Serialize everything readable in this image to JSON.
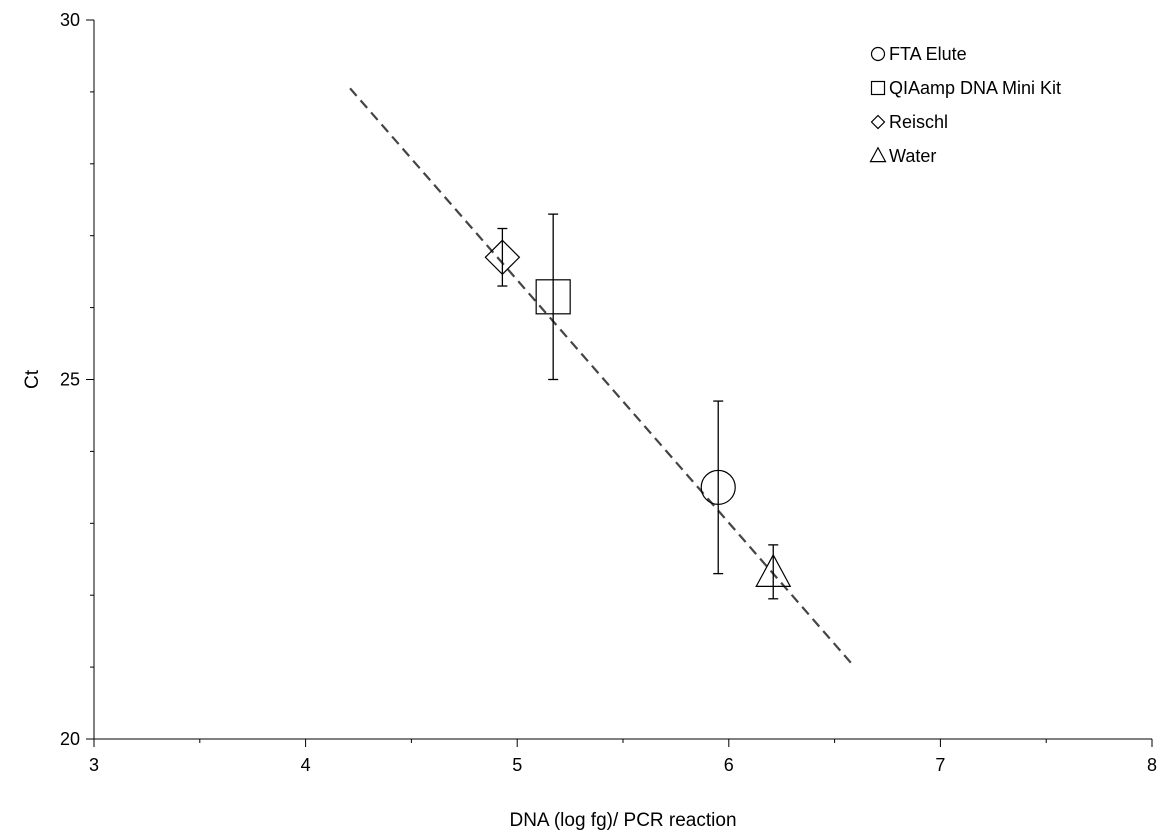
{
  "chart_data": {
    "type": "scatter",
    "xlabel": "DNA (log fg)/ PCR reaction",
    "ylabel": "Ct",
    "xlim": [
      3,
      8
    ],
    "ylim": [
      20,
      30
    ],
    "x_ticks": [
      3,
      4,
      5,
      6,
      7,
      8
    ],
    "y_ticks": [
      20,
      25,
      30
    ],
    "grid": false,
    "legend_position": "top-right",
    "series": [
      {
        "name": "FTA Elute",
        "marker": "circle",
        "x": 5.95,
        "y": 23.5,
        "err_low": 22.3,
        "err_high": 24.7
      },
      {
        "name": "QIAamp DNA Mini Kit",
        "marker": "square",
        "x": 5.17,
        "y": 26.15,
        "err_low": 25.0,
        "err_high": 27.3
      },
      {
        "name": "Reischl",
        "marker": "diamond",
        "x": 4.93,
        "y": 26.7,
        "err_low": 26.3,
        "err_high": 27.1
      },
      {
        "name": "Water",
        "marker": "triangle",
        "x": 6.21,
        "y": 22.3,
        "err_low": 21.95,
        "err_high": 22.7
      }
    ],
    "fit_line": {
      "style": "dashed",
      "x": [
        4.21,
        6.58
      ],
      "y": [
        29.05,
        21.05
      ]
    }
  }
}
